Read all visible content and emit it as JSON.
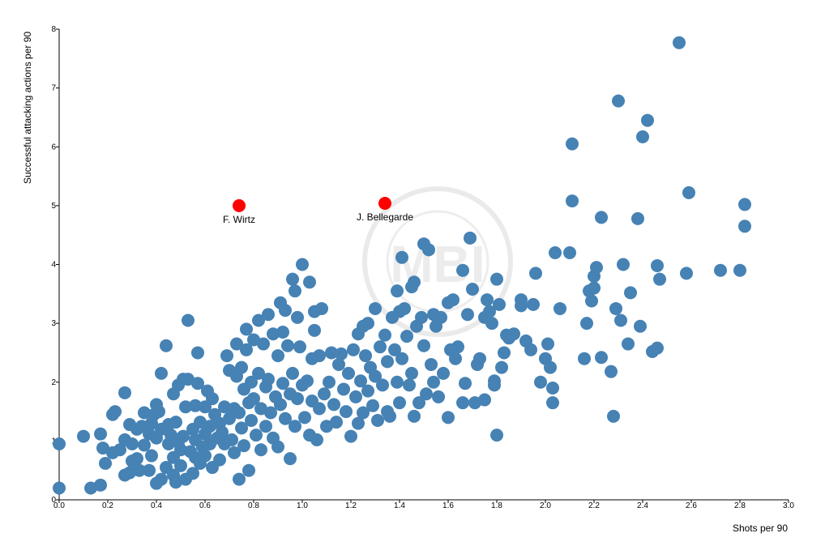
{
  "chart_data": {
    "type": "scatter",
    "xlabel": "Shots per 90",
    "ylabel": "Successful attacking actions per 90",
    "xlim": [
      0,
      3
    ],
    "ylim": [
      0,
      8
    ],
    "x_ticks": [
      "0.0",
      "0.2",
      "0.4",
      "0.6",
      "0.8",
      "1.0",
      "1.2",
      "1.4",
      "1.6",
      "1.8",
      "2.0",
      "2.2",
      "2.4",
      "2.6",
      "2.8",
      "3.0"
    ],
    "y_ticks": [
      "0",
      "1",
      "2",
      "3",
      "4",
      "5",
      "6",
      "7",
      "8"
    ],
    "grid": false,
    "colors": {
      "points": "#4682b4",
      "highlight": "#ff0000",
      "watermark": "#e6e6e6"
    },
    "highlighted": [
      {
        "name": "F. Wirtz",
        "x": 0.74,
        "y": 5.0
      },
      {
        "name": "J. Bellegarde",
        "x": 1.34,
        "y": 5.04
      }
    ],
    "series": [
      {
        "points": [
          [
            0.0,
            0.2
          ],
          [
            0.0,
            0.95
          ],
          [
            0.1,
            1.08
          ],
          [
            0.13,
            0.2
          ],
          [
            0.17,
            0.25
          ],
          [
            0.17,
            1.12
          ],
          [
            0.18,
            0.88
          ],
          [
            0.19,
            0.62
          ],
          [
            0.22,
            0.8
          ],
          [
            0.22,
            1.45
          ],
          [
            0.23,
            1.5
          ],
          [
            0.25,
            0.85
          ],
          [
            0.27,
            0.42
          ],
          [
            0.27,
            1.02
          ],
          [
            0.27,
            1.82
          ],
          [
            0.29,
            1.28
          ],
          [
            0.29,
            0.46
          ],
          [
            0.3,
            0.95
          ],
          [
            0.3,
            0.66
          ],
          [
            0.32,
            0.7
          ],
          [
            0.32,
            1.2
          ],
          [
            0.33,
            0.5
          ],
          [
            0.34,
            1.25
          ],
          [
            0.35,
            0.93
          ],
          [
            0.35,
            1.48
          ],
          [
            0.37,
            1.12
          ],
          [
            0.37,
            0.5
          ],
          [
            0.38,
            1.3
          ],
          [
            0.38,
            0.75
          ],
          [
            0.39,
            1.45
          ],
          [
            0.4,
            1.05
          ],
          [
            0.4,
            1.62
          ],
          [
            0.4,
            0.28
          ],
          [
            0.41,
            1.5
          ],
          [
            0.42,
            0.35
          ],
          [
            0.42,
            1.2
          ],
          [
            0.42,
            2.15
          ],
          [
            0.44,
            2.62
          ],
          [
            0.44,
            0.55
          ],
          [
            0.45,
            1.28
          ],
          [
            0.45,
            0.95
          ],
          [
            0.46,
            1.1
          ],
          [
            0.47,
            0.72
          ],
          [
            0.47,
            0.42
          ],
          [
            0.47,
            1.8
          ],
          [
            0.48,
            0.3
          ],
          [
            0.48,
            1.32
          ],
          [
            0.49,
            1.95
          ],
          [
            0.49,
            0.98
          ],
          [
            0.5,
            0.58
          ],
          [
            0.5,
            0.85
          ],
          [
            0.51,
            1.08
          ],
          [
            0.51,
            2.05
          ],
          [
            0.52,
            0.35
          ],
          [
            0.52,
            1.58
          ],
          [
            0.53,
            3.05
          ],
          [
            0.53,
            2.05
          ],
          [
            0.54,
            0.82
          ],
          [
            0.55,
            1.2
          ],
          [
            0.55,
            0.45
          ],
          [
            0.56,
            1.02
          ],
          [
            0.56,
            0.72
          ],
          [
            0.56,
            1.6
          ],
          [
            0.57,
            2.5
          ],
          [
            0.57,
            1.98
          ],
          [
            0.58,
            1.32
          ],
          [
            0.58,
            0.62
          ],
          [
            0.59,
            0.9
          ],
          [
            0.6,
            1.12
          ],
          [
            0.6,
            1.58
          ],
          [
            0.6,
            0.75
          ],
          [
            0.61,
            1.85
          ],
          [
            0.62,
            0.95
          ],
          [
            0.62,
            1.25
          ],
          [
            0.63,
            1.72
          ],
          [
            0.63,
            0.55
          ],
          [
            0.64,
            1.45
          ],
          [
            0.65,
            1.05
          ],
          [
            0.66,
            0.68
          ],
          [
            0.66,
            1.3
          ],
          [
            0.67,
            1.15
          ],
          [
            0.68,
            1.58
          ],
          [
            0.68,
            0.95
          ],
          [
            0.69,
            2.45
          ],
          [
            0.7,
            2.2
          ],
          [
            0.7,
            1.38
          ],
          [
            0.71,
            1.02
          ],
          [
            0.72,
            1.55
          ],
          [
            0.72,
            0.8
          ],
          [
            0.73,
            2.1
          ],
          [
            0.73,
            2.65
          ],
          [
            0.74,
            0.35
          ],
          [
            0.74,
            1.48
          ],
          [
            0.75,
            1.22
          ],
          [
            0.75,
            2.25
          ],
          [
            0.76,
            0.92
          ],
          [
            0.76,
            1.88
          ],
          [
            0.77,
            2.55
          ],
          [
            0.77,
            2.9
          ],
          [
            0.78,
            1.65
          ],
          [
            0.78,
            0.5
          ],
          [
            0.79,
            2.0
          ],
          [
            0.79,
            1.35
          ],
          [
            0.8,
            2.72
          ],
          [
            0.8,
            1.72
          ],
          [
            0.81,
            1.1
          ],
          [
            0.82,
            3.05
          ],
          [
            0.82,
            2.15
          ],
          [
            0.83,
            1.55
          ],
          [
            0.83,
            0.85
          ],
          [
            0.84,
            2.65
          ],
          [
            0.85,
            1.92
          ],
          [
            0.85,
            1.25
          ],
          [
            0.86,
            3.15
          ],
          [
            0.86,
            2.05
          ],
          [
            0.87,
            1.48
          ],
          [
            0.88,
            2.82
          ],
          [
            0.88,
            1.05
          ],
          [
            0.89,
            1.75
          ],
          [
            0.9,
            2.45
          ],
          [
            0.9,
            0.9
          ],
          [
            0.91,
            3.35
          ],
          [
            0.91,
            1.62
          ],
          [
            0.92,
            2.85
          ],
          [
            0.92,
            1.98
          ],
          [
            0.93,
            3.22
          ],
          [
            0.93,
            1.38
          ],
          [
            0.94,
            2.62
          ],
          [
            0.95,
            1.8
          ],
          [
            0.95,
            0.7
          ],
          [
            0.96,
            3.75
          ],
          [
            0.96,
            2.15
          ],
          [
            0.97,
            3.55
          ],
          [
            0.97,
            1.25
          ],
          [
            0.98,
            3.1
          ],
          [
            0.98,
            1.72
          ],
          [
            0.99,
            2.6
          ],
          [
            1.0,
            1.95
          ],
          [
            1.0,
            4.0
          ],
          [
            1.01,
            1.4
          ],
          [
            1.02,
            2.02
          ],
          [
            1.03,
            3.7
          ],
          [
            1.03,
            1.1
          ],
          [
            1.04,
            2.4
          ],
          [
            1.04,
            1.68
          ],
          [
            1.05,
            3.2
          ],
          [
            1.05,
            2.88
          ],
          [
            1.06,
            1.02
          ],
          [
            1.07,
            2.45
          ],
          [
            1.07,
            1.55
          ],
          [
            1.08,
            3.25
          ],
          [
            1.09,
            1.8
          ],
          [
            1.1,
            1.25
          ],
          [
            1.11,
            2.0
          ],
          [
            1.12,
            2.5
          ],
          [
            1.13,
            1.62
          ],
          [
            1.14,
            1.32
          ],
          [
            1.15,
            2.3
          ],
          [
            1.16,
            2.48
          ],
          [
            1.17,
            1.88
          ],
          [
            1.18,
            1.5
          ],
          [
            1.19,
            2.15
          ],
          [
            1.2,
            1.08
          ],
          [
            1.21,
            2.55
          ],
          [
            1.22,
            1.75
          ],
          [
            1.23,
            2.82
          ],
          [
            1.23,
            1.3
          ],
          [
            1.24,
            2.02
          ],
          [
            1.25,
            2.95
          ],
          [
            1.25,
            1.48
          ],
          [
            1.26,
            2.45
          ],
          [
            1.27,
            3.0
          ],
          [
            1.27,
            1.85
          ],
          [
            1.28,
            2.25
          ],
          [
            1.29,
            1.6
          ],
          [
            1.3,
            3.25
          ],
          [
            1.3,
            2.1
          ],
          [
            1.31,
            1.35
          ],
          [
            1.32,
            2.6
          ],
          [
            1.33,
            1.95
          ],
          [
            1.34,
            2.8
          ],
          [
            1.35,
            1.5
          ],
          [
            1.35,
            2.35
          ],
          [
            1.36,
            1.42
          ],
          [
            1.37,
            3.1
          ],
          [
            1.38,
            2.55
          ],
          [
            1.39,
            3.55
          ],
          [
            1.39,
            2.0
          ],
          [
            1.4,
            3.2
          ],
          [
            1.4,
            1.65
          ],
          [
            1.41,
            4.12
          ],
          [
            1.41,
            2.4
          ],
          [
            1.42,
            3.25
          ],
          [
            1.43,
            2.78
          ],
          [
            1.44,
            1.95
          ],
          [
            1.45,
            3.62
          ],
          [
            1.45,
            2.15
          ],
          [
            1.46,
            1.42
          ],
          [
            1.46,
            3.7
          ],
          [
            1.47,
            2.95
          ],
          [
            1.48,
            1.65
          ],
          [
            1.49,
            3.1
          ],
          [
            1.5,
            2.62
          ],
          [
            1.5,
            4.35
          ],
          [
            1.51,
            1.8
          ],
          [
            1.52,
            4.25
          ],
          [
            1.53,
            2.3
          ],
          [
            1.54,
            3.15
          ],
          [
            1.54,
            2.0
          ],
          [
            1.55,
            2.95
          ],
          [
            1.56,
            1.75
          ],
          [
            1.57,
            3.1
          ],
          [
            1.58,
            2.15
          ],
          [
            1.6,
            1.4
          ],
          [
            1.6,
            3.35
          ],
          [
            1.61,
            2.55
          ],
          [
            1.62,
            3.4
          ],
          [
            1.63,
            2.4
          ],
          [
            1.64,
            2.6
          ],
          [
            1.66,
            1.65
          ],
          [
            1.66,
            3.9
          ],
          [
            1.67,
            1.98
          ],
          [
            1.68,
            3.15
          ],
          [
            1.69,
            4.45
          ],
          [
            1.7,
            3.58
          ],
          [
            1.71,
            1.65
          ],
          [
            1.72,
            2.3
          ],
          [
            1.73,
            2.4
          ],
          [
            1.75,
            1.7
          ],
          [
            1.75,
            3.1
          ],
          [
            1.76,
            3.4
          ],
          [
            1.77,
            3.2
          ],
          [
            1.78,
            3.0
          ],
          [
            1.79,
            1.95
          ],
          [
            1.79,
            2.02
          ],
          [
            1.8,
            1.1
          ],
          [
            1.8,
            3.75
          ],
          [
            1.81,
            3.32
          ],
          [
            1.82,
            2.25
          ],
          [
            1.83,
            2.5
          ],
          [
            1.84,
            2.8
          ],
          [
            1.85,
            2.75
          ],
          [
            1.87,
            2.82
          ],
          [
            1.9,
            3.4
          ],
          [
            1.9,
            3.3
          ],
          [
            1.92,
            2.7
          ],
          [
            1.94,
            2.55
          ],
          [
            1.95,
            3.32
          ],
          [
            1.96,
            3.85
          ],
          [
            1.98,
            2.0
          ],
          [
            2.0,
            2.4
          ],
          [
            2.01,
            2.65
          ],
          [
            2.02,
            2.25
          ],
          [
            2.03,
            1.9
          ],
          [
            2.03,
            1.65
          ],
          [
            2.04,
            4.2
          ],
          [
            2.06,
            3.25
          ],
          [
            2.1,
            4.2
          ],
          [
            2.11,
            6.05
          ],
          [
            2.11,
            5.08
          ],
          [
            2.16,
            2.4
          ],
          [
            2.17,
            3.0
          ],
          [
            2.18,
            3.55
          ],
          [
            2.19,
            3.38
          ],
          [
            2.2,
            3.8
          ],
          [
            2.2,
            3.6
          ],
          [
            2.21,
            3.95
          ],
          [
            2.23,
            2.42
          ],
          [
            2.23,
            4.8
          ],
          [
            2.27,
            2.18
          ],
          [
            2.28,
            1.42
          ],
          [
            2.29,
            3.25
          ],
          [
            2.3,
            6.78
          ],
          [
            2.31,
            3.05
          ],
          [
            2.32,
            4.0
          ],
          [
            2.34,
            2.65
          ],
          [
            2.35,
            3.52
          ],
          [
            2.38,
            4.78
          ],
          [
            2.39,
            2.95
          ],
          [
            2.4,
            6.17
          ],
          [
            2.42,
            6.45
          ],
          [
            2.44,
            2.52
          ],
          [
            2.46,
            2.58
          ],
          [
            2.46,
            3.98
          ],
          [
            2.47,
            3.75
          ],
          [
            2.55,
            7.77
          ],
          [
            2.58,
            3.85
          ],
          [
            2.59,
            5.22
          ],
          [
            2.72,
            3.9
          ],
          [
            2.8,
            3.9
          ],
          [
            2.82,
            5.02
          ],
          [
            2.82,
            4.65
          ]
        ]
      }
    ]
  }
}
